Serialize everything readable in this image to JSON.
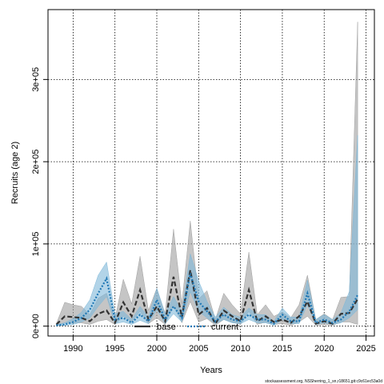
{
  "chart_data": {
    "type": "line",
    "xlabel": "Years",
    "ylabel": "Recruits (age 2)",
    "xlim": [
      1987,
      2026
    ],
    "ylim": [
      -12000,
      385000
    ],
    "grid": true,
    "legend_placement": "bottom-center",
    "x_ticks": [
      1990,
      1995,
      2000,
      2005,
      2010,
      2015,
      2020,
      2025
    ],
    "x_tick_labels": [
      "1990",
      "1995",
      "2000",
      "2005",
      "2010",
      "2015",
      "2020",
      "2025"
    ],
    "y_ticks": [
      0,
      100000,
      200000,
      300000
    ],
    "y_tick_labels": [
      "0e+00",
      "1e+05",
      "2e+05",
      "3e+05"
    ],
    "x": [
      1988,
      1989,
      1990,
      1991,
      1992,
      1993,
      1994,
      1995,
      1996,
      1997,
      1998,
      1999,
      2000,
      2001,
      2002,
      2003,
      2004,
      2005,
      2006,
      2007,
      2008,
      2009,
      2010,
      2011,
      2012,
      2013,
      2014,
      2015,
      2016,
      2017,
      2018,
      2019,
      2020,
      2021,
      2022,
      2023,
      2024
    ],
    "series": [
      {
        "name": "base",
        "color": "#333333",
        "band_color": "#9e9e9e",
        "line_style": "dashed",
        "values": [
          2000,
          12000,
          11000,
          10000,
          6000,
          15000,
          19000,
          4000,
          29000,
          12000,
          44000,
          8000,
          24000,
          6000,
          60000,
          11000,
          68000,
          14000,
          22000,
          3000,
          19000,
          12000,
          6000,
          44000,
          6000,
          12000,
          5000,
          8000,
          4000,
          12000,
          30000,
          3000,
          6000,
          3000,
          15000,
          16000,
          33000
        ],
        "lower": [
          1000,
          4000,
          4000,
          4000,
          2000,
          6000,
          8000,
          2000,
          12000,
          5000,
          18000,
          3000,
          10000,
          2000,
          25000,
          4000,
          30000,
          5000,
          9000,
          1000,
          8000,
          5000,
          2000,
          18000,
          2000,
          5000,
          2000,
          3000,
          1000,
          5000,
          12000,
          1000,
          2000,
          1000,
          5000,
          5000,
          2000
        ],
        "upper": [
          3000,
          29000,
          26000,
          24000,
          14000,
          34000,
          40000,
          9000,
          57000,
          27000,
          85000,
          19000,
          46000,
          15000,
          118000,
          27000,
          128000,
          33000,
          43000,
          8000,
          40000,
          26000,
          15000,
          90000,
          14000,
          26000,
          12000,
          17000,
          10000,
          26000,
          62000,
          8000,
          15000,
          8000,
          35000,
          36000,
          370000
        ]
      },
      {
        "name": "current",
        "color": "#1f77b4",
        "band_color": "#7fb8d8",
        "line_style": "dotted",
        "values": [
          1000,
          2000,
          5000,
          10000,
          20000,
          40000,
          58000,
          8000,
          10000,
          4000,
          14000,
          6000,
          32000,
          8000,
          24000,
          10000,
          64000,
          30000,
          18000,
          6000,
          14000,
          8000,
          6000,
          14000,
          8000,
          8000,
          3000,
          14000,
          6000,
          6000,
          40000,
          4000,
          8000,
          4000,
          8000,
          18000,
          38000
        ],
        "lower": [
          500,
          1000,
          2000,
          5000,
          10000,
          24000,
          36000,
          3000,
          5000,
          2000,
          7000,
          3000,
          20000,
          3000,
          15000,
          5000,
          42000,
          18000,
          10000,
          3000,
          8000,
          4000,
          3000,
          8000,
          4000,
          4000,
          1000,
          8000,
          3000,
          3000,
          26000,
          2000,
          4000,
          2000,
          4000,
          10000,
          20000
        ],
        "upper": [
          2000,
          4000,
          9000,
          17000,
          32000,
          62000,
          78000,
          15000,
          18000,
          8000,
          24000,
          11000,
          46000,
          15000,
          36000,
          18000,
          88000,
          55000,
          30000,
          11000,
          23000,
          14000,
          11000,
          22000,
          14000,
          14000,
          6000,
          22000,
          11000,
          11000,
          56000,
          8000,
          14000,
          8000,
          16000,
          42000,
          232000
        ]
      }
    ]
  },
  "footer": {
    "source": "stockassessment.org, NSSherring_1_sn,r18651,git:c9c61ec53a0d"
  }
}
